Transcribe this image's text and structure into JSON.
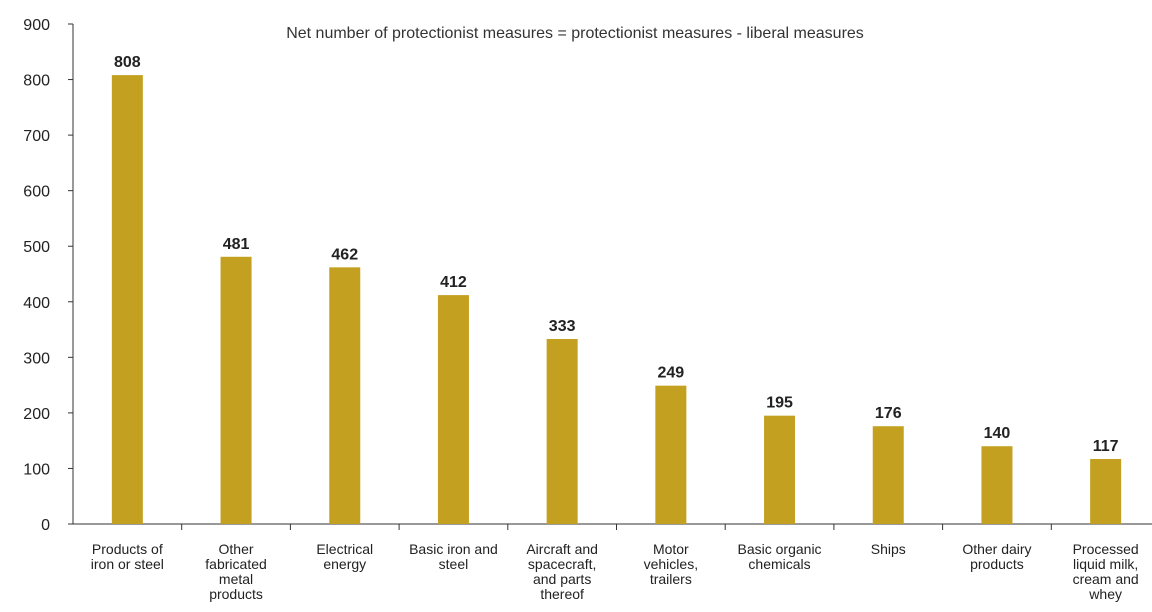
{
  "chart_data": {
    "type": "bar",
    "annotation": "Net number of protectionist measures = protectionist measures - liberal measures",
    "categories": [
      [
        "Products of",
        "iron or steel"
      ],
      [
        "Other",
        "fabricated",
        "metal",
        "products"
      ],
      [
        "Electrical",
        "energy"
      ],
      [
        "Basic iron and",
        "steel"
      ],
      [
        "Aircraft and",
        "spacecraft,",
        "and parts",
        "thereof"
      ],
      [
        "Motor",
        "vehicles,",
        "trailers"
      ],
      [
        "Basic organic",
        "chemicals"
      ],
      [
        "Ships"
      ],
      [
        "Other dairy",
        "products"
      ],
      [
        "Processed",
        "liquid milk,",
        "cream and",
        "whey"
      ]
    ],
    "values": [
      808,
      481,
      462,
      412,
      333,
      249,
      195,
      176,
      140,
      117
    ],
    "data_labels": [
      "808",
      "481",
      "462",
      "412",
      "333",
      "249",
      "195",
      "176",
      "140",
      "117"
    ],
    "ylim": [
      0,
      900
    ],
    "yticks": [
      "0",
      "100",
      "200",
      "300",
      "400",
      "500",
      "600",
      "700",
      "800",
      "900"
    ],
    "grid": false,
    "bar_color": "#c4a020"
  }
}
